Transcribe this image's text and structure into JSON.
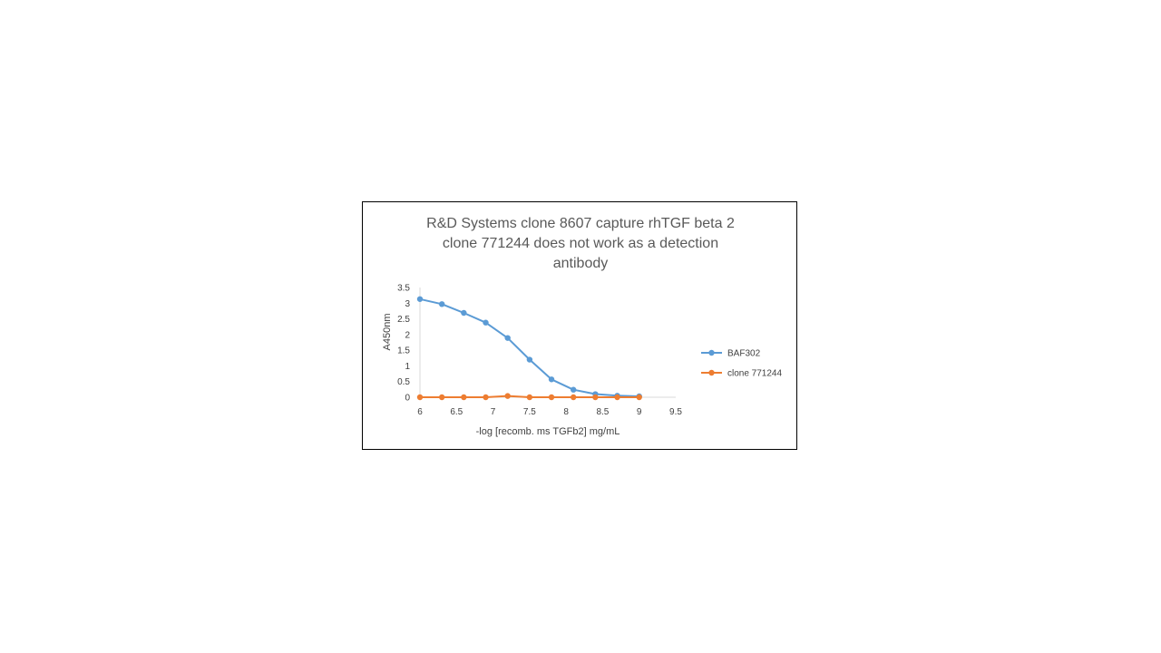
{
  "chart_data": {
    "type": "line",
    "title_lines": [
      "R&D Systems clone 8607 capture rhTGF beta 2",
      "clone 771244 does not work as a detection",
      "antibody"
    ],
    "xlabel": "-log [recomb.  ms TGFb2] mg/mL",
    "ylabel": "A450nm",
    "xlim": [
      6,
      9.5
    ],
    "ylim": [
      0,
      3.5
    ],
    "x_ticks": [
      "6",
      "6.5",
      "7",
      "7.5",
      "8",
      "8.5",
      "9",
      "9.5"
    ],
    "y_ticks": [
      "0",
      "0.5",
      "1",
      "1.5",
      "2",
      "2.5",
      "3",
      "3.5"
    ],
    "x_tick_values": [
      6,
      6.5,
      7,
      7.5,
      8,
      8.5,
      9,
      9.5
    ],
    "y_tick_values": [
      0,
      0.5,
      1,
      1.5,
      2,
      2.5,
      3,
      3.5
    ],
    "grid": false,
    "legend_position": "right",
    "series": [
      {
        "name": "BAF302",
        "color": "#5b9bd5",
        "x": [
          6,
          6.3,
          6.6,
          6.9,
          7.2,
          7.5,
          7.8,
          8.1,
          8.4,
          8.7,
          9
        ],
        "y": [
          3.13,
          2.97,
          2.69,
          2.38,
          1.89,
          1.2,
          0.57,
          0.24,
          0.1,
          0.05,
          0.03
        ]
      },
      {
        "name": "clone 771244",
        "color": "#ed7d31",
        "x": [
          6,
          6.3,
          6.6,
          6.9,
          7.2,
          7.5,
          7.8,
          8.1,
          8.4,
          8.7,
          9
        ],
        "y": [
          0.0,
          0.0,
          0.0,
          0.0,
          0.04,
          0.0,
          0.0,
          0.0,
          0.0,
          0.0,
          0.0
        ]
      }
    ]
  }
}
